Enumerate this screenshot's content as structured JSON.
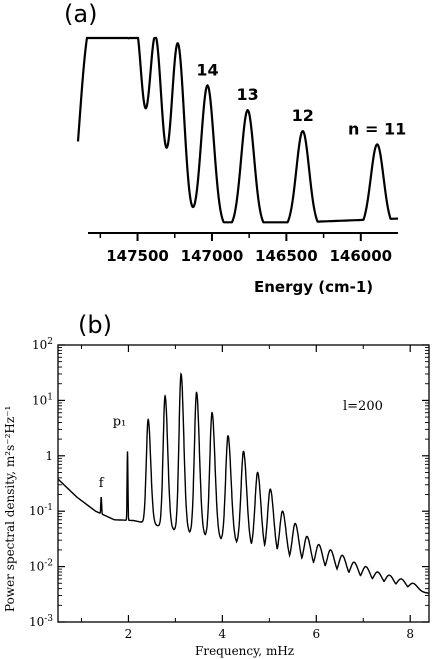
{
  "chart_data": [
    {
      "panel_label": "(a)",
      "type": "line",
      "xlabel": "Energy (cm-1)",
      "xlim": [
        147900,
        145750
      ],
      "x_inverted": true,
      "x_ticks": [
        147500,
        147000,
        146500,
        146000
      ],
      "x_tick_labels": [
        "147500",
        "147000",
        "146500",
        "146000"
      ],
      "peaks": [
        {
          "x": 147870,
          "height": 0.45
        },
        {
          "x": 147820,
          "height": 0.58
        },
        {
          "x": 147760,
          "height": 0.73
        },
        {
          "x": 147690,
          "height": 0.88
        },
        {
          "x": 147610,
          "height": 0.96
        },
        {
          "x": 147510,
          "height": 1.0
        },
        {
          "x": 147380,
          "height": 1.0
        },
        {
          "x": 147230,
          "height": 0.97
        },
        {
          "x": 147030,
          "height": 0.75,
          "label": "14"
        },
        {
          "x": 146760,
          "height": 0.62,
          "label": "13"
        },
        {
          "x": 146390,
          "height": 0.51,
          "label": "12"
        },
        {
          "x": 145890,
          "height": 0.44,
          "label": "n = 11"
        }
      ],
      "annotations": [
        "14",
        "13",
        "12",
        "n = 11"
      ]
    },
    {
      "panel_label": "(b)",
      "type": "line",
      "scale_y": "log",
      "xlabel": "Frequency, mHz",
      "ylabel": "Power spectral density, m²s⁻²Hz⁻¹",
      "xlim": [
        0.5,
        8.4
      ],
      "ylim": [
        0.001,
        100
      ],
      "x_ticks": [
        2,
        4,
        6,
        8
      ],
      "x_tick_labels": [
        "2",
        "4",
        "6",
        "8"
      ],
      "y_ticks": [
        0.001,
        0.01,
        0.1,
        1,
        10,
        100
      ],
      "y_tick_labels": [
        {
          "base": "10",
          "exp": "-3"
        },
        {
          "base": "10",
          "exp": "-2"
        },
        {
          "base": "10",
          "exp": "-1"
        },
        {
          "base": "1",
          "exp": ""
        },
        {
          "base": "10",
          "exp": "1"
        },
        {
          "base": "10",
          "exp": "2"
        }
      ],
      "annotation_corner": "l=200",
      "annotations": [
        {
          "text": "f",
          "x": 1.42,
          "y": 0.18
        },
        {
          "text": "p₁",
          "x": 1.98,
          "y": 1.2
        }
      ],
      "spikes": [
        {
          "x": 1.42,
          "y": 0.18
        },
        {
          "x": 1.98,
          "y": 1.2
        },
        {
          "x": 2.42,
          "y": 4.5
        },
        {
          "x": 2.78,
          "y": 12
        },
        {
          "x": 3.12,
          "y": 30
        },
        {
          "x": 3.45,
          "y": 14
        },
        {
          "x": 3.78,
          "y": 6
        },
        {
          "x": 4.12,
          "y": 2.3
        },
        {
          "x": 4.45,
          "y": 1.2
        },
        {
          "x": 4.75,
          "y": 0.5
        },
        {
          "x": 5.02,
          "y": 0.25
        },
        {
          "x": 5.28,
          "y": 0.1
        },
        {
          "x": 5.55,
          "y": 0.06
        },
        {
          "x": 5.8,
          "y": 0.035
        },
        {
          "x": 6.05,
          "y": 0.025
        },
        {
          "x": 6.3,
          "y": 0.02
        },
        {
          "x": 6.55,
          "y": 0.016
        },
        {
          "x": 6.8,
          "y": 0.012
        },
        {
          "x": 7.05,
          "y": 0.01
        },
        {
          "x": 7.3,
          "y": 0.008
        },
        {
          "x": 7.55,
          "y": 0.007
        },
        {
          "x": 7.8,
          "y": 0.006
        },
        {
          "x": 8.05,
          "y": 0.005
        }
      ],
      "background": [
        {
          "x": 0.5,
          "y": 0.38
        },
        {
          "x": 0.9,
          "y": 0.18
        },
        {
          "x": 1.3,
          "y": 0.1
        },
        {
          "x": 1.7,
          "y": 0.07
        },
        {
          "x": 2.1,
          "y": 0.068
        },
        {
          "x": 2.5,
          "y": 0.058
        },
        {
          "x": 3.0,
          "y": 0.045
        },
        {
          "x": 3.5,
          "y": 0.038
        },
        {
          "x": 4.0,
          "y": 0.03
        },
        {
          "x": 4.5,
          "y": 0.024
        },
        {
          "x": 5.0,
          "y": 0.017
        },
        {
          "x": 5.5,
          "y": 0.012
        },
        {
          "x": 6.0,
          "y": 0.009
        },
        {
          "x": 6.5,
          "y": 0.007
        },
        {
          "x": 7.0,
          "y": 0.0055
        },
        {
          "x": 7.5,
          "y": 0.0045
        },
        {
          "x": 8.0,
          "y": 0.0037
        },
        {
          "x": 8.4,
          "y": 0.0033
        }
      ]
    }
  ]
}
